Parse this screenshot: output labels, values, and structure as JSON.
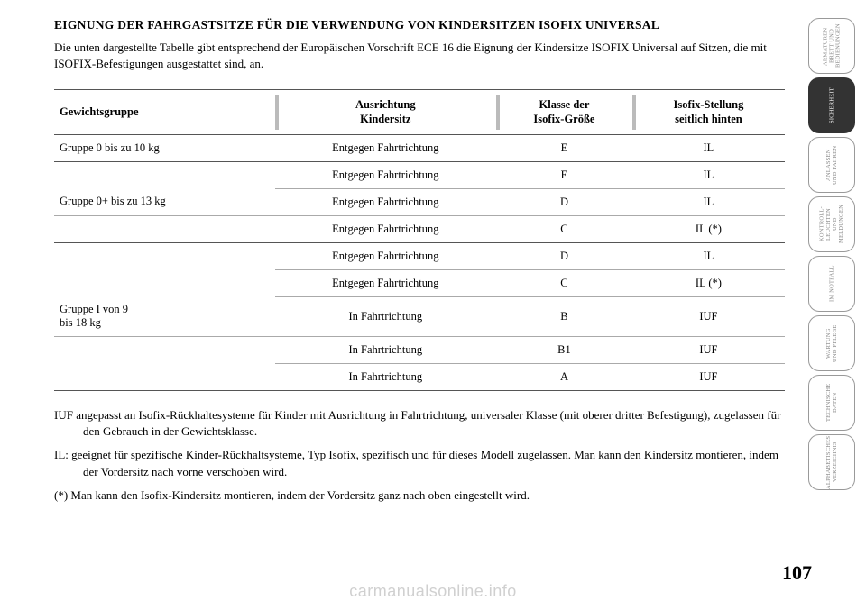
{
  "heading": "EIGNUNG DER FAHRGASTSITZE FÜR DIE VERWENDUNG VON KINDERSITZEN ISOFIX UNIVERSAL",
  "intro": "Die unten dargestellte Tabelle gibt entsprechend der Europäischen Vorschrift ECE 16 die Eignung der Kindersitze ISOFIX Universal auf Sitzen, die mit ISOFIX-Befestigungen ausgestattet sind, an.",
  "table": {
    "headers": {
      "col1": "Gewichtsgruppe",
      "col2a": "Ausrichtung",
      "col2b": "Kindersitz",
      "col3a": "Klasse der",
      "col3b": "Isofix-Größe",
      "col4a": "Isofix-Stellung",
      "col4b": "seitlich hinten"
    },
    "rows": [
      {
        "group": "Gruppe 0 bis zu 10 kg",
        "dir": "Entgegen Fahrtrichtung",
        "class": "E",
        "pos": "IL",
        "gend": true
      },
      {
        "group": "",
        "dir": "Entgegen Fahrtrichtung",
        "class": "E",
        "pos": "IL"
      },
      {
        "group": "Gruppe 0+ bis zu 13 kg",
        "dir": "Entgegen Fahrtrichtung",
        "class": "D",
        "pos": "IL"
      },
      {
        "group": "",
        "dir": "Entgegen Fahrtrichtung",
        "class": "C",
        "pos": "IL (*)",
        "gend": true
      },
      {
        "group": "",
        "dir": "Entgegen Fahrtrichtung",
        "class": "D",
        "pos": "IL"
      },
      {
        "group": "",
        "dir": "Entgegen Fahrtrichtung",
        "class": "C",
        "pos": "IL (*)"
      },
      {
        "group": "Gruppe I von 9",
        "group2": "bis 18 kg",
        "dir": "In Fahrtrichtung",
        "class": "B",
        "pos": "IUF"
      },
      {
        "group": "",
        "dir": "In Fahrtrichtung",
        "class": "B1",
        "pos": "IUF"
      },
      {
        "group": "",
        "dir": "In Fahrtrichtung",
        "class": "A",
        "pos": "IUF",
        "gend": true,
        "last": true
      }
    ]
  },
  "notes": {
    "iuf": "IUF angepasst an Isofix-Rückhaltesysteme für Kinder mit Ausrichtung in Fahrtrichtung, universaler Klasse (mit oberer dritter Befestigung), zugelassen für den Gebrauch in der Gewichtsklasse.",
    "il": "IL: geeignet für spezifische Kinder-Rückhaltsysteme, Typ Isofix, spezifisch und für dieses Modell zugelassen. Man kann den Kindersitz montieren, indem der Vordersitz nach vorne verschoben wird.",
    "star": "(*) Man kann den Isofix-Kindersitz montieren, indem der Vordersitz ganz nach oben eingestellt wird."
  },
  "tabs": [
    {
      "label": "ARMATUREN-\nBRETT UND\nBEDIENUNGEN",
      "active": false
    },
    {
      "label": "SICHERHEIT",
      "active": true
    },
    {
      "label": "ANLASSEN\nUND FAHREN",
      "active": false
    },
    {
      "label": "KONTROLL-\nLEUCHTEN UND\nMELDUNGEN",
      "active": false
    },
    {
      "label": "IM NOTFALL",
      "active": false
    },
    {
      "label": "WARTUNG\nUND PFLEGE",
      "active": false
    },
    {
      "label": "TECHNISCHE\nDATEN",
      "active": false
    },
    {
      "label": "ALPHABETISCHES\nVERZEICHNIS",
      "active": false
    }
  ],
  "page_number": "107",
  "watermark": "carmanualsonline.info"
}
